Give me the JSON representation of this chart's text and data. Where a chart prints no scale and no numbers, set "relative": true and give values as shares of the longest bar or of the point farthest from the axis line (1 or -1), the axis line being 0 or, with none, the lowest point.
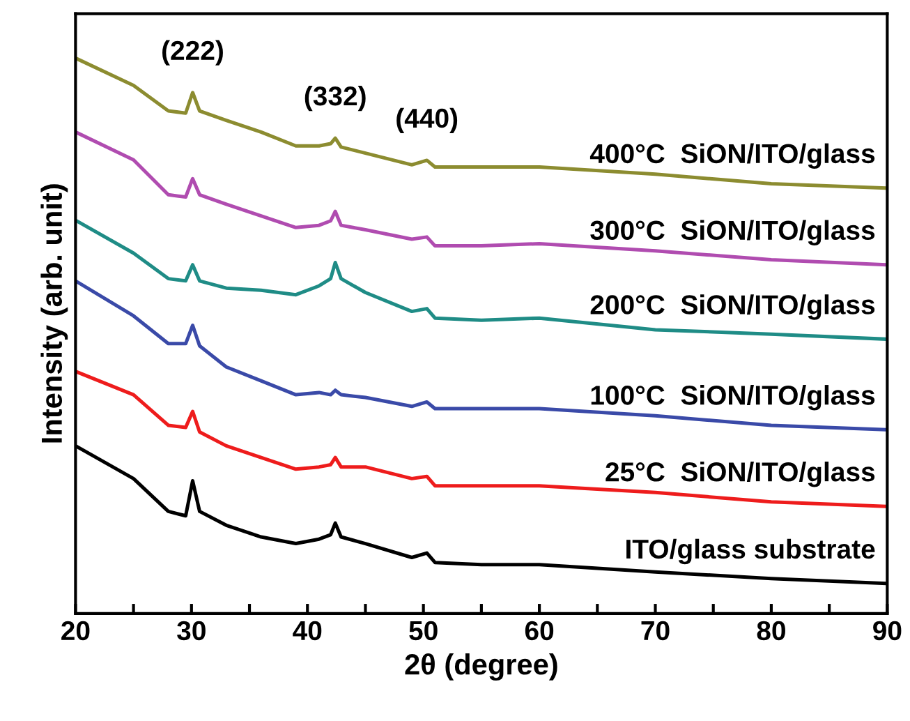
{
  "chart_data": {
    "type": "line",
    "relative": true,
    "xlabel": "2θ (degree)",
    "ylabel": "Intensity (arb. unit)",
    "xlim": [
      20,
      90
    ],
    "xticks": [
      20,
      {
        "value": 25,
        "label": null
      },
      30,
      {
        "value": 35,
        "label": null
      },
      40,
      {
        "value": 45,
        "label": null
      },
      50,
      {
        "value": 55,
        "label": null
      },
      60,
      {
        "value": 65,
        "label": null
      },
      70,
      {
        "value": 75,
        "label": null
      },
      80,
      {
        "value": 85,
        "label": null
      },
      90
    ],
    "grid": false,
    "marker": "none",
    "line_style": "solid",
    "x": [
      20,
      25,
      28,
      29.5,
      30.1,
      30.7,
      33,
      36,
      39,
      41,
      42,
      42.4,
      42.9,
      45,
      49,
      50.3,
      51,
      55,
      60,
      70,
      80,
      90
    ],
    "series": [
      {
        "name": "ITO/glass substrate",
        "color": "#000000",
        "values": [
          0.302,
          0.243,
          0.184,
          0.176,
          0.239,
          0.184,
          0.159,
          0.138,
          0.126,
          0.134,
          0.142,
          0.163,
          0.138,
          0.126,
          0.101,
          0.109,
          0.092,
          0.088,
          0.088,
          0.075,
          0.063,
          0.054
        ]
      },
      {
        "name": "25°C  SiON/ITO/glass",
        "color": "#ee1c1c",
        "values": [
          0.436,
          0.394,
          0.339,
          0.335,
          0.364,
          0.327,
          0.302,
          0.281,
          0.26,
          0.264,
          0.268,
          0.281,
          0.264,
          0.264,
          0.243,
          0.247,
          0.23,
          0.23,
          0.23,
          0.218,
          0.201,
          0.193
        ]
      },
      {
        "name": "100°C  SiON/ITO/glass",
        "color": "#3a4aa8",
        "values": [
          0.599,
          0.536,
          0.486,
          0.486,
          0.519,
          0.482,
          0.444,
          0.419,
          0.394,
          0.398,
          0.394,
          0.402,
          0.394,
          0.389,
          0.373,
          0.381,
          0.369,
          0.369,
          0.369,
          0.356,
          0.339,
          0.331
        ]
      },
      {
        "name": "200°C  SiON/ITO/glass",
        "color": "#1f8c86",
        "values": [
          0.708,
          0.649,
          0.603,
          0.599,
          0.628,
          0.599,
          0.586,
          0.582,
          0.574,
          0.59,
          0.603,
          0.632,
          0.603,
          0.578,
          0.544,
          0.549,
          0.532,
          0.528,
          0.532,
          0.511,
          0.503,
          0.494
        ]
      },
      {
        "name": "300°C  SiON/ITO/glass",
        "color": "#b04cb0",
        "values": [
          0.867,
          0.817,
          0.754,
          0.75,
          0.783,
          0.754,
          0.737,
          0.716,
          0.695,
          0.699,
          0.707,
          0.724,
          0.699,
          0.691,
          0.674,
          0.678,
          0.662,
          0.662,
          0.666,
          0.653,
          0.637,
          0.628
        ]
      },
      {
        "name": "400°C  SiON/ITO/glass",
        "color": "#8c8c30",
        "values": [
          1.0,
          0.951,
          0.905,
          0.901,
          0.938,
          0.905,
          0.888,
          0.867,
          0.842,
          0.842,
          0.846,
          0.856,
          0.84,
          0.829,
          0.808,
          0.816,
          0.804,
          0.804,
          0.804,
          0.791,
          0.774,
          0.766
        ]
      }
    ],
    "annotations": [
      {
        "text": "(222)",
        "x": 30.1,
        "y": 0.938
      },
      {
        "text": "(332)",
        "x": 42.4,
        "y": 0.856
      },
      {
        "text": "(440)",
        "x": 50.3,
        "y": 0.816
      }
    ]
  }
}
